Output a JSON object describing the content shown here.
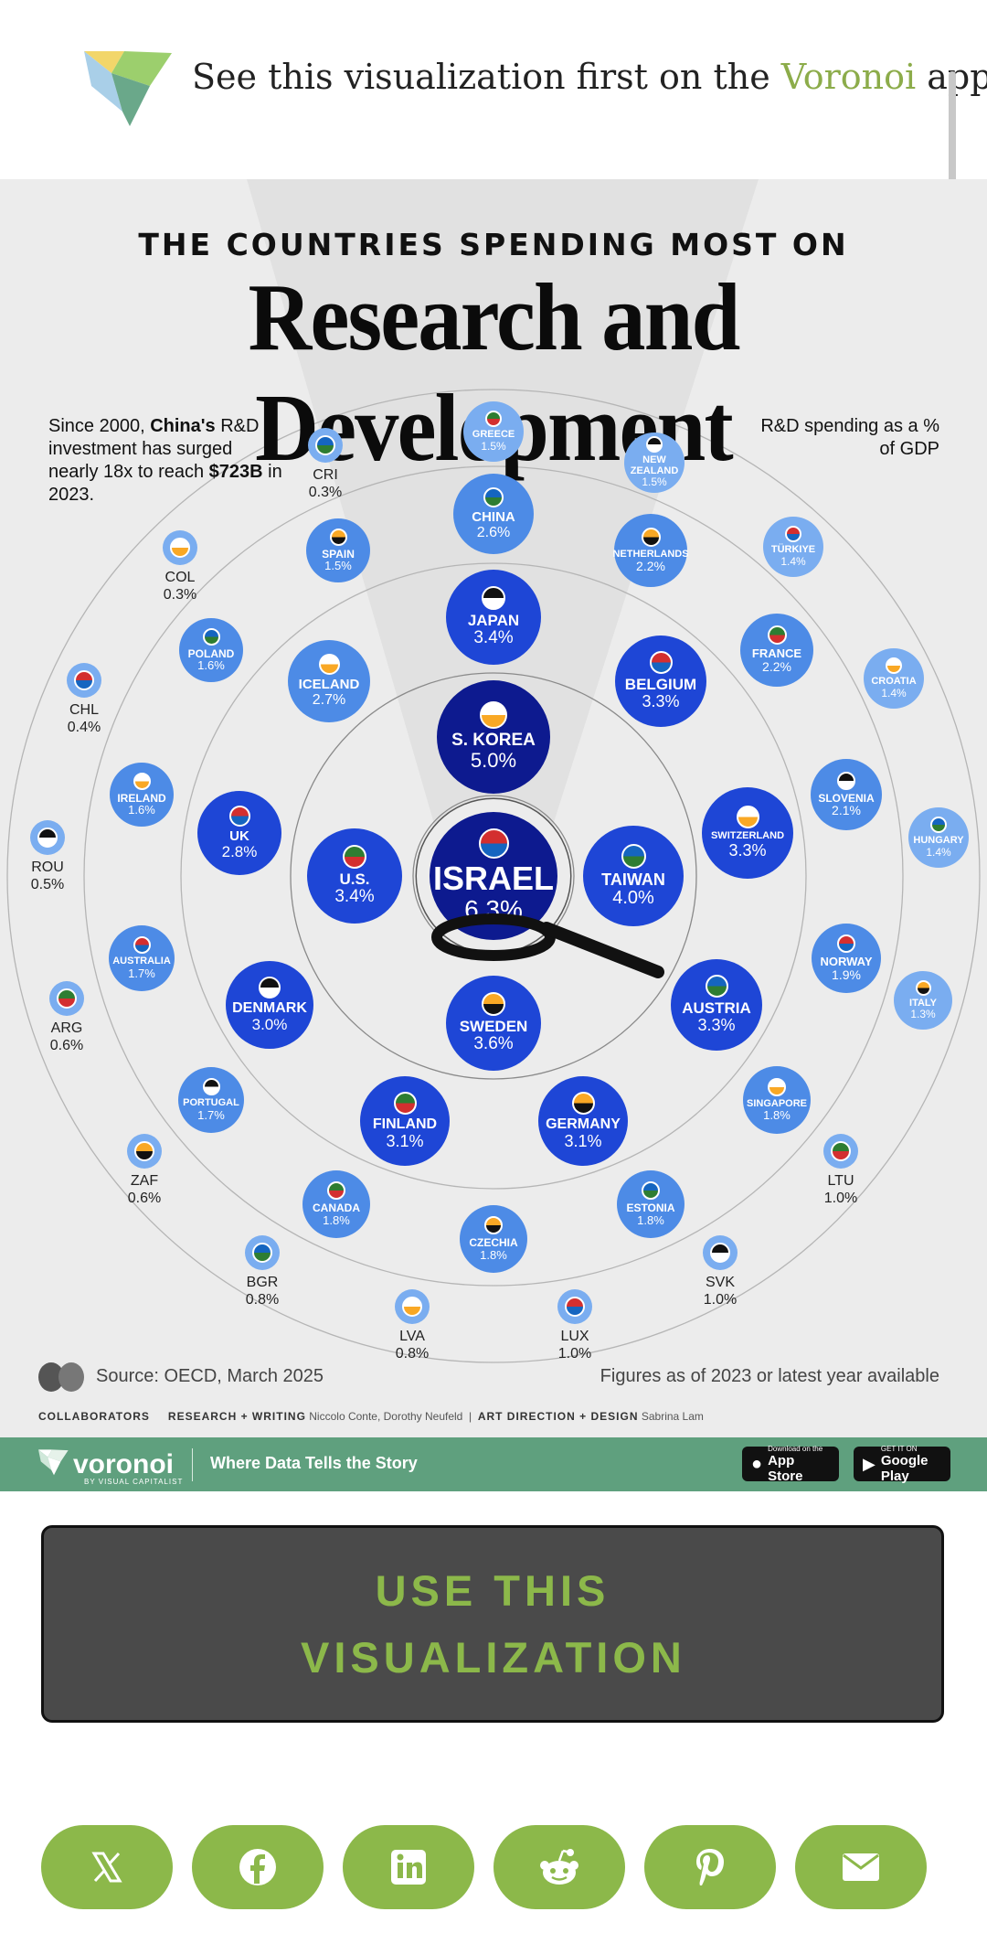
{
  "banner": {
    "prefix": "See this visualization first on the ",
    "link": "Voronoi",
    "suffix": " app."
  },
  "infographic": {
    "kicker": "THE COUNTRIES SPENDING MOST ON",
    "title": "Research and Development",
    "note_parts": [
      "Since 2000, ",
      "China's",
      " R&D investment has surged nearly 18x to reach ",
      "$723B",
      " in 2023."
    ],
    "legend": "R&D spending as a % of GDP",
    "source": "Source: OECD, March 2025",
    "figures_note": "Figures as of 2023 or latest year available",
    "collaborators_label": "COLLABORATORS",
    "research_label": "RESEARCH + WRITING",
    "research_names": "Niccolo Conte, Dorothy Neufeld",
    "art_label": "ART DIRECTION + DESIGN",
    "art_names": "Sabrina Lam"
  },
  "chart_data": {
    "type": "bubble",
    "title": "Research and Development",
    "subtitle": "THE COUNTRIES SPENDING MOST ON",
    "value_label": "R&D spending as a % of GDP",
    "countries": [
      {
        "name": "ISRAEL",
        "value": "6.3%",
        "ring": 0
      },
      {
        "name": "S. KOREA",
        "value": "5.0%",
        "ring": 1
      },
      {
        "name": "TAIWAN",
        "value": "4.0%",
        "ring": 1
      },
      {
        "name": "SWEDEN",
        "value": "3.6%",
        "ring": 1
      },
      {
        "name": "U.S.",
        "value": "3.4%",
        "ring": 1
      },
      {
        "name": "JAPAN",
        "value": "3.4%",
        "ring": 2
      },
      {
        "name": "BELGIUM",
        "value": "3.3%",
        "ring": 2
      },
      {
        "name": "SWITZERLAND",
        "value": "3.3%",
        "ring": 2
      },
      {
        "name": "AUSTRIA",
        "value": "3.3%",
        "ring": 2
      },
      {
        "name": "GERMANY",
        "value": "3.1%",
        "ring": 2
      },
      {
        "name": "FINLAND",
        "value": "3.1%",
        "ring": 2
      },
      {
        "name": "DENMARK",
        "value": "3.0%",
        "ring": 2
      },
      {
        "name": "UK",
        "value": "2.8%",
        "ring": 2
      },
      {
        "name": "ICELAND",
        "value": "2.7%",
        "ring": 2
      },
      {
        "name": "CHINA",
        "value": "2.6%",
        "ring": 3
      },
      {
        "name": "NETHERLANDS",
        "value": "2.2%",
        "ring": 3
      },
      {
        "name": "FRANCE",
        "value": "2.2%",
        "ring": 3
      },
      {
        "name": "SLOVENIA",
        "value": "2.1%",
        "ring": 3
      },
      {
        "name": "NORWAY",
        "value": "1.9%",
        "ring": 3
      },
      {
        "name": "SINGAPORE",
        "value": "1.8%",
        "ring": 3
      },
      {
        "name": "ESTONIA",
        "value": "1.8%",
        "ring": 3
      },
      {
        "name": "CZECHIA",
        "value": "1.8%",
        "ring": 3
      },
      {
        "name": "CANADA",
        "value": "1.8%",
        "ring": 3
      },
      {
        "name": "PORTUGAL",
        "value": "1.7%",
        "ring": 3
      },
      {
        "name": "AUSTRALIA",
        "value": "1.7%",
        "ring": 3
      },
      {
        "name": "IRELAND",
        "value": "1.6%",
        "ring": 3
      },
      {
        "name": "POLAND",
        "value": "1.6%",
        "ring": 3
      },
      {
        "name": "SPAIN",
        "value": "1.5%",
        "ring": 3
      },
      {
        "name": "GREECE",
        "value": "1.5%",
        "ring": 4
      },
      {
        "name": "NEW ZEALAND",
        "value": "1.5%",
        "ring": 4
      },
      {
        "name": "TÜRKIYE",
        "value": "1.4%",
        "ring": 4
      },
      {
        "name": "CROATIA",
        "value": "1.4%",
        "ring": 4
      },
      {
        "name": "HUNGARY",
        "value": "1.4%",
        "ring": 4
      },
      {
        "name": "ITALY",
        "value": "1.3%",
        "ring": 4
      },
      {
        "name": "LTU",
        "value": "1.0%",
        "ring": 4
      },
      {
        "name": "SVK",
        "value": "1.0%",
        "ring": 4
      },
      {
        "name": "LUX",
        "value": "1.0%",
        "ring": 4
      },
      {
        "name": "LVA",
        "value": "0.8%",
        "ring": 4
      },
      {
        "name": "BGR",
        "value": "0.8%",
        "ring": 4
      },
      {
        "name": "ZAF",
        "value": "0.6%",
        "ring": 4
      },
      {
        "name": "ARG",
        "value": "0.6%",
        "ring": 4
      },
      {
        "name": "ROU",
        "value": "0.5%",
        "ring": 4
      },
      {
        "name": "CHL",
        "value": "0.4%",
        "ring": 4
      },
      {
        "name": "COL",
        "value": "0.3%",
        "ring": 4
      },
      {
        "name": "CRI",
        "value": "0.3%",
        "ring": 4
      }
    ]
  },
  "footer": {
    "brand": "voronoi",
    "brand_sub": "BY VISUAL CAPITALIST",
    "tagline": "Where Data Tells the Story",
    "app_store_small": "Download on the",
    "app_store_big": "App Store",
    "google_small": "GET IT ON",
    "google_big": "Google Play"
  },
  "cta": {
    "label": "USE THIS VISUALIZATION"
  },
  "share": [
    "x-icon",
    "facebook-icon",
    "linkedin-icon",
    "reddit-icon",
    "pinterest-icon",
    "email-icon"
  ],
  "colors": {
    "accent": "#8cb84a",
    "footer": "#5fa07e",
    "dark_blue": "#0d1a8f",
    "mid_blue": "#1e46d6",
    "light_blue": "#4d8be6"
  }
}
